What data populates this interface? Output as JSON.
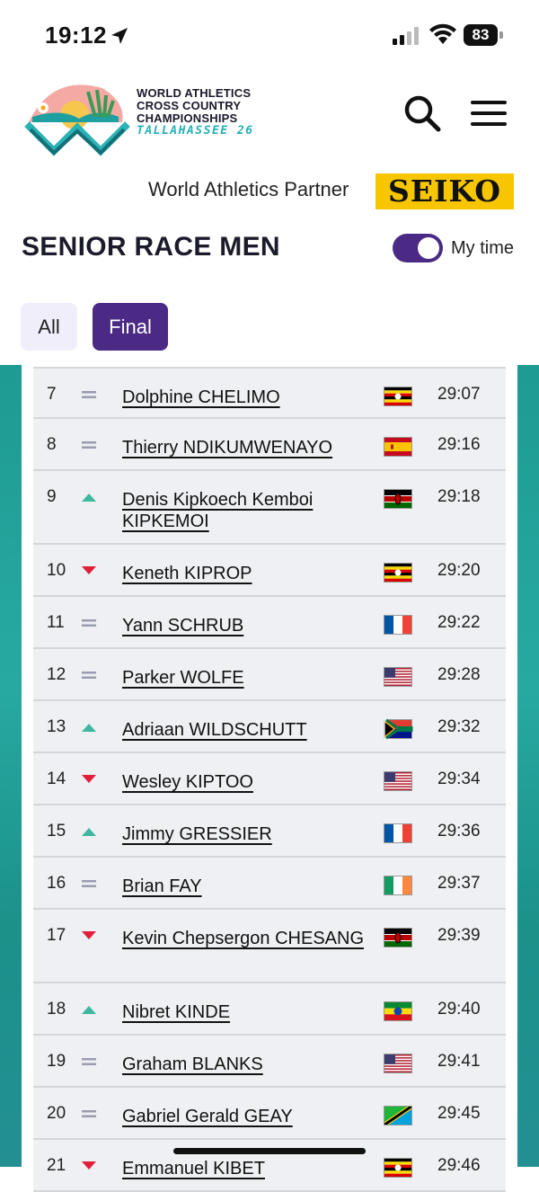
{
  "status_bar": {
    "time": "19:12",
    "battery": "83"
  },
  "header": {
    "logo_lines": [
      "WORLD ATHLETICS",
      "CROSS COUNTRY",
      "CHAMPIONSHIPS"
    ],
    "logo_sub": "TALLAHASSEE 26"
  },
  "partner": {
    "label": "World Athletics Partner",
    "brand": "SEIKO",
    "brand_color": "#f7c600"
  },
  "race": {
    "title": "SENIOR RACE MEN",
    "toggle_label": "My time",
    "toggle_on": true
  },
  "filters": {
    "all": "All",
    "final": "Final",
    "active": "Final",
    "accent": "#4a2a84"
  },
  "colors": {
    "up": "#3fb8a0",
    "down": "#e0203a",
    "same": "#9a9cb0"
  },
  "results": [
    {
      "rank": "7",
      "movement": "same",
      "name": "Dolphine CHELIMO",
      "flag": "uganda-flag",
      "time": "29:07"
    },
    {
      "rank": "8",
      "movement": "same",
      "name": "Thierry NDIKUMWENAYO",
      "flag": "spain-flag",
      "time": "29:16"
    },
    {
      "rank": "9",
      "movement": "up",
      "name": "Denis Kipkoech Kemboi KIPKEMOI",
      "flag": "kenya-flag",
      "time": "29:18"
    },
    {
      "rank": "10",
      "movement": "down",
      "name": "Keneth KIPROP",
      "flag": "uganda-flag",
      "time": "29:20"
    },
    {
      "rank": "11",
      "movement": "same",
      "name": "Yann SCHRUB",
      "flag": "france-flag",
      "time": "29:22"
    },
    {
      "rank": "12",
      "movement": "same",
      "name": "Parker WOLFE",
      "flag": "usa-flag",
      "time": "29:28"
    },
    {
      "rank": "13",
      "movement": "up",
      "name": "Adriaan WILDSCHUTT",
      "flag": "south-africa-flag",
      "time": "29:32"
    },
    {
      "rank": "14",
      "movement": "down",
      "name": "Wesley KIPTOO",
      "flag": "usa-flag",
      "time": "29:34"
    },
    {
      "rank": "15",
      "movement": "up",
      "name": "Jimmy GRESSIER",
      "flag": "france-flag",
      "time": "29:36"
    },
    {
      "rank": "16",
      "movement": "same",
      "name": "Brian FAY",
      "flag": "ireland-flag",
      "time": "29:37"
    },
    {
      "rank": "17",
      "movement": "down",
      "name": "Kevin Chepsergon CHESANG",
      "flag": "kenya-flag",
      "time": "29:39"
    },
    {
      "rank": "18",
      "movement": "up",
      "name": "Nibret KINDE",
      "flag": "ethiopia-flag",
      "time": "29:40"
    },
    {
      "rank": "19",
      "movement": "same",
      "name": "Graham BLANKS",
      "flag": "usa-flag",
      "time": "29:41"
    },
    {
      "rank": "20",
      "movement": "same",
      "name": "Gabriel Gerald GEAY",
      "flag": "tanzania-flag",
      "time": "29:45"
    },
    {
      "rank": "21",
      "movement": "down",
      "name": "Emmanuel KIBET",
      "flag": "uganda-flag",
      "time": "29:46"
    }
  ]
}
